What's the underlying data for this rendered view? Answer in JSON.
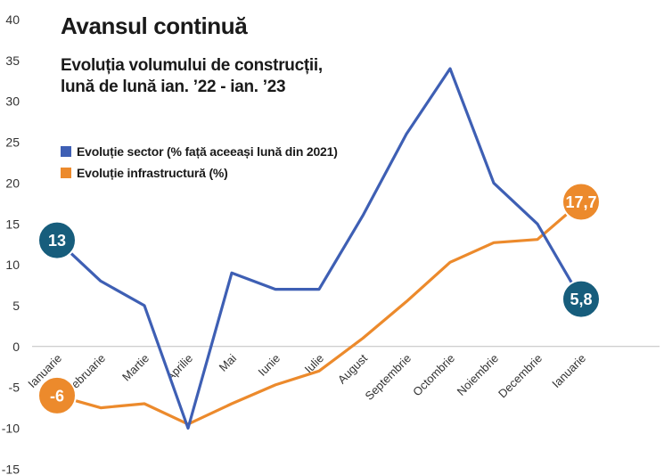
{
  "chart_data": {
    "type": "line",
    "title": "Avansul continuă",
    "subtitle_lines": [
      "Evoluția volumului de construcții,",
      "lună de lună ian. ’22 - ian. ’23"
    ],
    "categories": [
      "Ianuarie",
      "Februarie",
      "Martie",
      "Aprilie",
      "Mai",
      "Iunie",
      "Iulie",
      "August",
      "Septembrie",
      "Octombrie",
      "Noiembrie",
      "Decembrie",
      "Ianuarie"
    ],
    "series": [
      {
        "name": "Evoluție sector (% față aceeași lună din 2021)",
        "color": "#3e5fb4",
        "values": [
          13,
          8,
          5,
          -10,
          9,
          7,
          7,
          16,
          26,
          34,
          20,
          15,
          5.8
        ]
      },
      {
        "name": "Evoluție infrastructură (%)",
        "color": "#ec8a2c",
        "values": [
          -6,
          -7.5,
          -7,
          -9.5,
          -7,
          -4.7,
          -3,
          1,
          5.5,
          10.3,
          12.7,
          13.1,
          17.7
        ]
      }
    ],
    "ylim": [
      -15,
      40
    ],
    "yticks": [
      -15,
      -10,
      -5,
      0,
      5,
      10,
      15,
      20,
      25,
      30,
      35,
      40
    ],
    "xlabel": "",
    "ylabel": "",
    "grid": false,
    "legend_position": "top-left",
    "annotations": [
      {
        "text": "13",
        "series": 0,
        "index": 0,
        "color": "#175d7c"
      },
      {
        "text": "5,8",
        "series": 0,
        "index": 12,
        "color": "#175d7c"
      },
      {
        "text": "-6",
        "series": 1,
        "index": 0,
        "color": "#ec8a2c"
      },
      {
        "text": "17,7",
        "series": 1,
        "index": 12,
        "color": "#ec8a2c"
      }
    ]
  }
}
